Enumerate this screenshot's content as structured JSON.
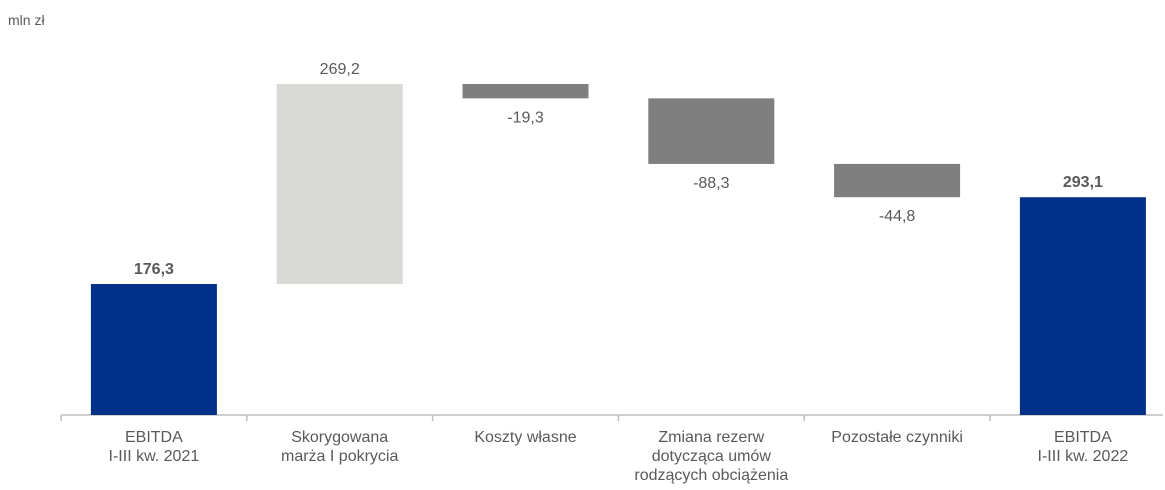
{
  "chart_data": {
    "type": "waterfall",
    "unit": "mln zł",
    "categories": [
      "EBITDA\nI-III kw. 2021",
      "Skorygowana\nmarża I pokrycia",
      "Koszty własne",
      "Zmiana rezerw\ndotycząca umów\nrodzących obciążenia",
      "Pozostałe czynniki",
      "EBITDA\nI-III kw. 2022"
    ],
    "values": [
      176.3,
      269.2,
      -19.3,
      -88.3,
      -44.8,
      293.1
    ],
    "value_labels": [
      "176,3",
      "269,2",
      "-19,3",
      "-88,3",
      "-44,8",
      "293,1"
    ],
    "totals": [
      true,
      false,
      false,
      false,
      false,
      true
    ],
    "colors": {
      "total": "#003087",
      "increase": "#d9d9d6",
      "decrease": "#7f7f7f"
    },
    "ylim": [
      0,
      500
    ]
  }
}
